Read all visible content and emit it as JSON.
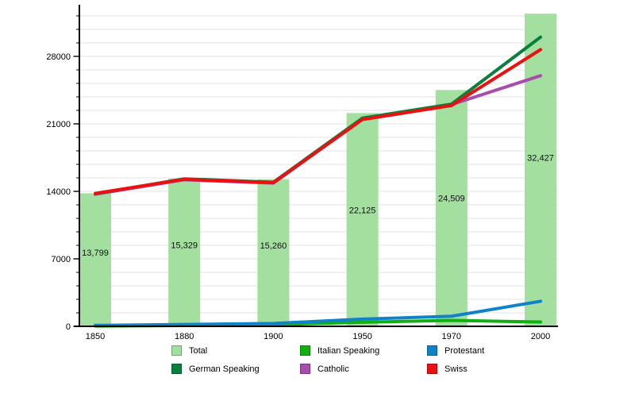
{
  "chart_data": {
    "type": "bar+line",
    "title": "",
    "categories": [
      "1850",
      "1880",
      "1900",
      "1950",
      "1970",
      "2000"
    ],
    "bar_series": {
      "name": "Total",
      "color": "#a3e0a0",
      "values": [
        13799,
        15329,
        15260,
        22125,
        24509,
        32427
      ],
      "labels": [
        "13,799",
        "15,329",
        "15,260",
        "22,125",
        "24,509",
        "32,427"
      ]
    },
    "line_series": [
      {
        "name": "Catholic",
        "color": "#a94caf",
        "values": [
          13700,
          15200,
          14850,
          21500,
          23000,
          26000
        ]
      },
      {
        "name": "German Speaking",
        "color": "#0b7f3f",
        "values": [
          13750,
          15300,
          14950,
          21600,
          23050,
          30000
        ]
      },
      {
        "name": "Swiss",
        "color": "#ee1010",
        "values": [
          13790,
          15250,
          14900,
          21450,
          22900,
          28700
        ]
      },
      {
        "name": "Italian Speaking",
        "color": "#10b010",
        "values": [
          30,
          80,
          180,
          420,
          620,
          450
        ]
      },
      {
        "name": "Protestant",
        "color": "#0f82c8",
        "values": [
          100,
          200,
          300,
          750,
          1050,
          2600
        ]
      }
    ],
    "y_ticks": [
      0,
      7000,
      14000,
      21000,
      28000
    ],
    "y_tick_labels": [
      "0",
      "7000",
      "14000",
      "21000",
      "28000"
    ],
    "y_minor_step": 1400,
    "ylim": [
      0,
      32200
    ],
    "grid": true,
    "xlabel": "",
    "ylabel": "",
    "legend_position": "bottom"
  },
  "legend": {
    "items": [
      {
        "key": "total",
        "label": "Total",
        "color": "#a3e0a0"
      },
      {
        "key": "italian-speaking",
        "label": "Italian Speaking",
        "color": "#10b010"
      },
      {
        "key": "protestant",
        "label": "Protestant",
        "color": "#0f82c8"
      },
      {
        "key": "german-speaking",
        "label": "German Speaking",
        "color": "#0b7f3f"
      },
      {
        "key": "catholic",
        "label": "Catholic",
        "color": "#a94caf"
      },
      {
        "key": "swiss",
        "label": "Swiss",
        "color": "#ee1010"
      }
    ]
  }
}
